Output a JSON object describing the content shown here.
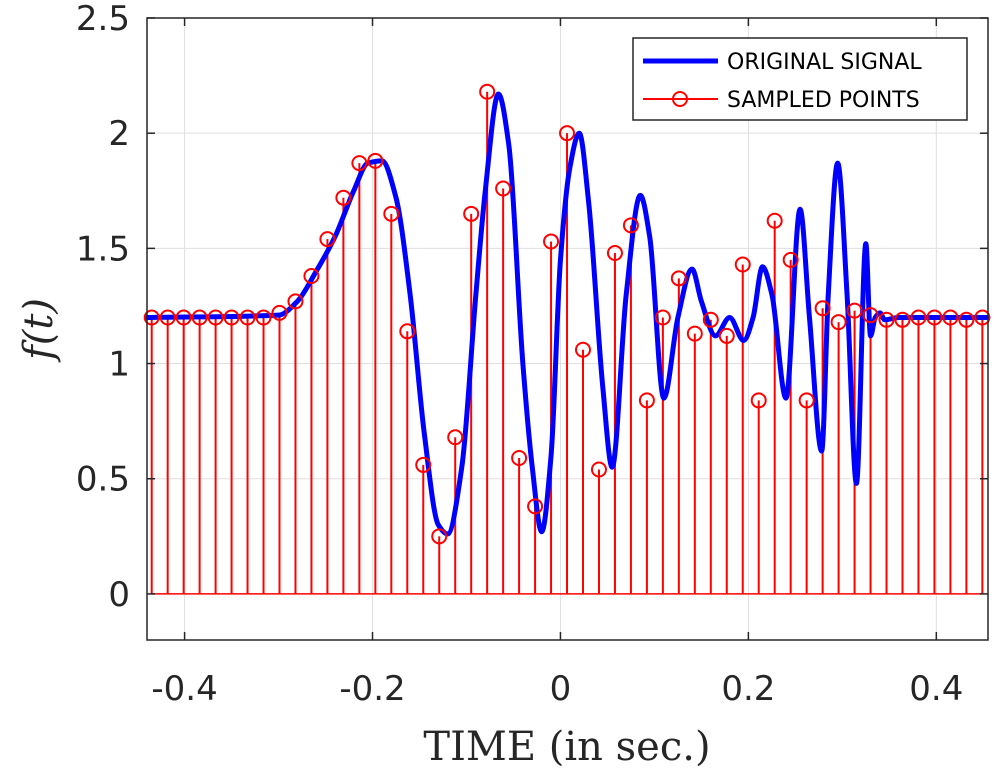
{
  "chart_data": {
    "type": "line",
    "xlabel": "TIME (in sec.)",
    "ylabel": "f(t)",
    "xlim": [
      -0.44,
      0.455
    ],
    "ylim": [
      -0.2,
      2.5
    ],
    "x_ticks": [
      -0.4,
      -0.2,
      0,
      0.2,
      0.4
    ],
    "x_tick_labels": [
      "-0.4",
      "-0.2",
      "0",
      "0.2",
      "0.4"
    ],
    "y_ticks": [
      0,
      0.5,
      1,
      1.5,
      2,
      2.5
    ],
    "y_tick_labels": [
      "0",
      "0.5",
      "1",
      "1.5",
      "2",
      "2.5"
    ],
    "grid": true,
    "legend_position": "top-right",
    "colors": {
      "signal": "#0000ff",
      "samples": "#ff0000",
      "axis": "#262626",
      "grid": "#dfdfdf"
    },
    "series": [
      {
        "name": "ORIGINAL SIGNAL",
        "type": "line",
        "x": [
          -0.44,
          -0.3,
          -0.28,
          -0.26,
          -0.24,
          -0.22,
          -0.205,
          -0.19,
          -0.175,
          -0.16,
          -0.145,
          -0.13,
          -0.12,
          -0.105,
          -0.09,
          -0.08,
          -0.066,
          -0.055,
          -0.04,
          -0.03,
          -0.02,
          -0.01,
          0.0,
          0.01,
          0.02,
          0.03,
          0.045,
          0.055,
          0.07,
          0.085,
          0.095,
          0.11,
          0.125,
          0.14,
          0.15,
          0.165,
          0.18,
          0.195,
          0.205,
          0.215,
          0.225,
          0.24,
          0.255,
          0.265,
          0.278,
          0.285,
          0.295,
          0.305,
          0.315,
          0.325,
          0.33,
          0.335,
          0.34,
          0.345,
          0.36,
          0.455
        ],
        "y": [
          1.2,
          1.21,
          1.27,
          1.4,
          1.55,
          1.75,
          1.87,
          1.88,
          1.72,
          1.3,
          0.7,
          0.3,
          0.26,
          0.55,
          1.3,
          1.75,
          2.17,
          1.95,
          1.0,
          0.55,
          0.27,
          0.6,
          1.45,
          1.85,
          2.0,
          1.7,
          0.9,
          0.55,
          1.3,
          1.73,
          1.55,
          0.85,
          1.2,
          1.41,
          1.27,
          1.12,
          1.2,
          1.1,
          1.2,
          1.42,
          1.3,
          0.85,
          1.67,
          1.2,
          0.62,
          1.3,
          1.87,
          1.3,
          0.48,
          1.52,
          1.12,
          1.2,
          1.22,
          1.19,
          1.2,
          1.2
        ]
      },
      {
        "name": "SAMPLED POINTS",
        "type": "stem",
        "x": [
          -0.435,
          -0.418,
          -0.401,
          -0.384,
          -0.367,
          -0.35,
          -0.333,
          -0.316,
          -0.299,
          -0.282,
          -0.265,
          -0.248,
          -0.231,
          -0.214,
          -0.197,
          -0.18,
          -0.163,
          -0.146,
          -0.129,
          -0.112,
          -0.095,
          -0.078,
          -0.061,
          -0.044,
          -0.027,
          -0.01,
          0.007,
          0.024,
          0.041,
          0.058,
          0.075,
          0.092,
          0.109,
          0.126,
          0.143,
          0.16,
          0.177,
          0.194,
          0.211,
          0.228,
          0.245,
          0.262,
          0.279,
          0.296,
          0.313,
          0.33,
          0.347,
          0.364,
          0.381,
          0.398,
          0.415,
          0.432,
          0.449
        ],
        "y": [
          1.2,
          1.2,
          1.2,
          1.2,
          1.2,
          1.2,
          1.2,
          1.2,
          1.22,
          1.27,
          1.38,
          1.54,
          1.72,
          1.87,
          1.88,
          1.65,
          1.14,
          0.56,
          0.25,
          0.68,
          1.65,
          2.18,
          1.76,
          0.59,
          0.38,
          1.53,
          2.0,
          1.06,
          0.54,
          1.48,
          1.6,
          0.84,
          1.2,
          1.37,
          1.13,
          1.19,
          1.12,
          1.43,
          0.84,
          1.62,
          1.45,
          0.84,
          1.24,
          1.18,
          1.23,
          1.21,
          1.19,
          1.19,
          1.2,
          1.2,
          1.2,
          1.19,
          1.2
        ]
      }
    ]
  }
}
